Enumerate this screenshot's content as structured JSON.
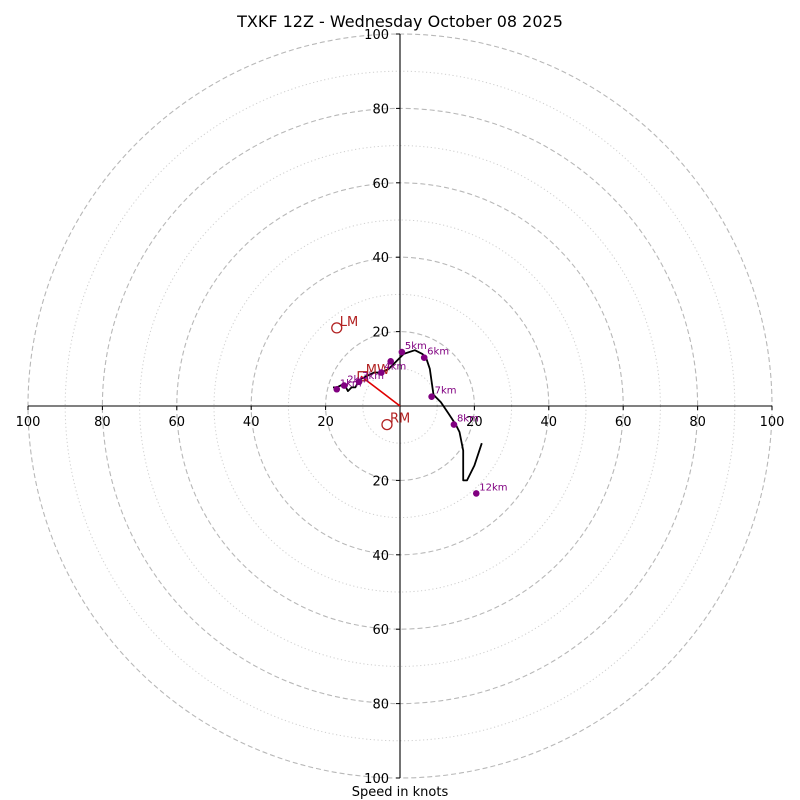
{
  "chart_data": {
    "type": "scatter",
    "subtype": "hodograph",
    "title": "TXKF 12Z - Wednesday October 08 2025",
    "xlabel": "Speed in knots",
    "range_max": 100,
    "ring_major": [
      20,
      40,
      60,
      80,
      100
    ],
    "ring_minor": [
      10,
      30,
      50,
      70,
      90
    ],
    "x_tick_values": [
      -100,
      -80,
      -60,
      -40,
      -20,
      20,
      40,
      60,
      80,
      100
    ],
    "x_tick_labels": [
      "100",
      "80",
      "60",
      "40",
      "20",
      "20",
      "40",
      "60",
      "80",
      "100"
    ],
    "y_tick_values": [
      100,
      80,
      60,
      40,
      20,
      -20,
      -40,
      -60,
      -80,
      -100
    ],
    "y_tick_labels": [
      "100",
      "80",
      "60",
      "40",
      "20",
      "20",
      "40",
      "60",
      "80",
      "100"
    ],
    "grid": true,
    "hodograph_trace": {
      "u": [
        -18,
        -17,
        -15,
        -14,
        -13,
        -12,
        -11,
        -9,
        -7,
        -5,
        -3,
        -1,
        1,
        4,
        6,
        7,
        8,
        9,
        11,
        13,
        15,
        16,
        17,
        17,
        17,
        18,
        20,
        22
      ],
      "v": [
        5,
        5,
        6,
        4,
        5,
        5,
        7,
        8,
        9,
        9,
        10,
        12,
        14,
        15,
        14,
        13,
        10,
        3,
        1,
        -2,
        -5,
        -7,
        -12,
        -15,
        -20,
        -20,
        -16,
        -10
      ]
    },
    "height_markers": [
      {
        "label": "1km",
        "u": -17,
        "v": 4.5
      },
      {
        "label": "2km",
        "u": -15,
        "v": 5.5
      },
      {
        "label": "3km",
        "u": -11,
        "v": 6.5
      },
      {
        "label": "4km",
        "u": -5,
        "v": 9
      },
      {
        "label": "",
        "u": -2.5,
        "v": 12
      },
      {
        "label": "5km",
        "u": 0.5,
        "v": 14.5
      },
      {
        "label": "6km",
        "u": 6.5,
        "v": 13
      },
      {
        "label": "7km",
        "u": 8.5,
        "v": 2.5
      },
      {
        "label": "8km",
        "u": 14.5,
        "v": -5
      },
      {
        "label": "12km",
        "u": 20.5,
        "v": -23.5
      }
    ],
    "storm_motion": [
      {
        "label": "LM",
        "u": -17,
        "v": 21,
        "marker": "circle"
      },
      {
        "label": "MW",
        "u": -10,
        "v": 8,
        "marker": "square"
      },
      {
        "label": "RM",
        "u": -3.5,
        "v": -5,
        "marker": "circle"
      }
    ],
    "motion_vector": {
      "from_u": 0,
      "from_v": 0,
      "to_u": -10.5,
      "to_v": 8
    },
    "colors": {
      "trace": "#000000",
      "height_markers": "#800080",
      "storm_motion": "#b22222",
      "motion_vector": "#e00000",
      "ring_major": "#b8b8b8",
      "ring_minor": "#cfcfcf"
    }
  }
}
